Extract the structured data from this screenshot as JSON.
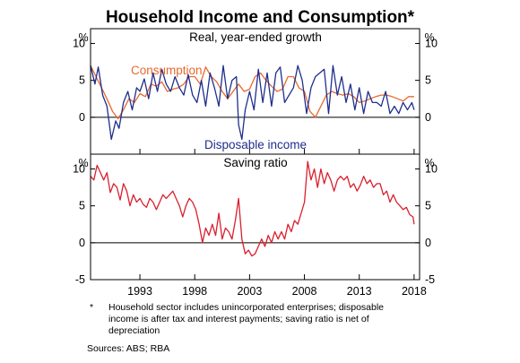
{
  "chart_data": {
    "type": "line",
    "title": "Household Income and Consumption*",
    "panels": [
      {
        "title": "Real, year-ended growth",
        "unit_left": "%",
        "unit_right": "%",
        "ylim": [
          -5,
          12
        ],
        "yticks": [
          0,
          5,
          10
        ],
        "ytick_labels": [
          "0",
          "5",
          "10"
        ],
        "series": [
          {
            "name": "Consumption",
            "label": "Consumption",
            "color": "#e8692e",
            "x": [
              1988.5,
              1989.0,
              1989.5,
              1990.0,
              1990.5,
              1991.0,
              1991.5,
              1992.0,
              1992.5,
              1993.0,
              1993.5,
              1994.0,
              1994.5,
              1995.0,
              1995.5,
              1996.0,
              1996.5,
              1997.0,
              1997.5,
              1998.0,
              1998.5,
              1999.0,
              1999.5,
              2000.0,
              2000.5,
              2001.0,
              2001.5,
              2002.0,
              2002.5,
              2003.0,
              2003.5,
              2004.0,
              2004.5,
              2005.0,
              2005.5,
              2006.0,
              2006.5,
              2007.0,
              2007.5,
              2008.0,
              2008.5,
              2009.0,
              2009.5,
              2010.0,
              2010.5,
              2011.0,
              2011.5,
              2012.0,
              2012.5,
              2013.0,
              2013.5,
              2014.0,
              2014.5,
              2015.0,
              2015.5,
              2016.0,
              2016.5,
              2017.0,
              2017.5,
              2018.0
            ],
            "y": [
              7.0,
              5.5,
              4.0,
              2.5,
              0.8,
              -0.2,
              1.0,
              2.5,
              2.0,
              3.2,
              2.8,
              4.5,
              4.2,
              4.8,
              3.5,
              3.8,
              4.0,
              4.5,
              5.5,
              5.5,
              4.5,
              6.8,
              5.5,
              4.8,
              3.5,
              2.5,
              3.5,
              4.5,
              3.5,
              3.8,
              5.5,
              6.0,
              5.0,
              4.2,
              3.5,
              3.8,
              5.5,
              5.5,
              4.0,
              3.5,
              0.8,
              0.0,
              1.5,
              3.0,
              3.5,
              3.2,
              3.0,
              3.2,
              2.8,
              2.0,
              2.2,
              2.5,
              2.8,
              3.0,
              3.0,
              2.8,
              2.5,
              2.2,
              2.8,
              2.8
            ]
          },
          {
            "name": "Disposable income",
            "label": "Disposable income",
            "color": "#1f2e8c",
            "x": [
              1988.5,
              1988.9,
              1989.2,
              1989.6,
              1990.0,
              1990.4,
              1990.8,
              1991.1,
              1991.5,
              1991.9,
              1992.3,
              1992.7,
              1993.0,
              1993.4,
              1993.8,
              1994.2,
              1994.6,
              1995.0,
              1995.4,
              1995.8,
              1996.2,
              1996.6,
              1997.0,
              1997.4,
              1997.8,
              1998.2,
              1998.6,
              1999.0,
              1999.4,
              1999.8,
              2000.2,
              2000.6,
              2001.0,
              2001.4,
              2001.8,
              2002.0,
              2002.3,
              2002.6,
              2003.0,
              2003.4,
              2003.8,
              2004.2,
              2004.6,
              2005.0,
              2005.4,
              2005.8,
              2006.2,
              2006.6,
              2007.0,
              2007.4,
              2007.8,
              2008.2,
              2008.6,
              2009.0,
              2009.4,
              2009.8,
              2010.2,
              2010.6,
              2011.0,
              2011.4,
              2011.8,
              2012.2,
              2012.6,
              2013.0,
              2013.4,
              2013.8,
              2014.2,
              2014.6,
              2015.0,
              2015.4,
              2015.8,
              2016.2,
              2016.6,
              2017.0,
              2017.4,
              2017.8,
              2018.0
            ],
            "y": [
              7.0,
              4.5,
              6.8,
              3.0,
              1.5,
              -3.0,
              -0.5,
              -1.5,
              2.0,
              3.5,
              1.0,
              4.0,
              3.5,
              5.2,
              2.5,
              6.0,
              3.5,
              6.5,
              4.5,
              3.5,
              5.5,
              4.0,
              3.0,
              5.8,
              3.0,
              2.0,
              5.0,
              1.5,
              6.0,
              4.0,
              1.5,
              7.0,
              2.5,
              5.0,
              5.5,
              -1.0,
              -3.0,
              1.0,
              3.5,
              1.0,
              6.5,
              2.0,
              6.0,
              1.5,
              6.0,
              6.8,
              2.0,
              3.0,
              4.0,
              7.0,
              5.0,
              0.5,
              4.0,
              5.5,
              6.0,
              6.5,
              0.5,
              7.0,
              3.0,
              5.5,
              2.0,
              4.5,
              1.0,
              4.0,
              0.5,
              3.5,
              2.0,
              2.0,
              1.5,
              3.5,
              0.5,
              1.5,
              0.5,
              2.0,
              1.0,
              2.0,
              1.0
            ]
          }
        ]
      },
      {
        "title": "Saving ratio",
        "unit_left": "%",
        "unit_right": "%",
        "ylim": [
          -5,
          12
        ],
        "yticks": [
          -5,
          0,
          5,
          10
        ],
        "ytick_labels": [
          "-5",
          "0",
          "5",
          "10"
        ],
        "series": [
          {
            "name": "Saving ratio",
            "color": "#d9202e",
            "x": [
              1988.5,
              1988.8,
              1989.1,
              1989.4,
              1989.7,
              1990.0,
              1990.3,
              1990.6,
              1990.9,
              1991.2,
              1991.5,
              1991.8,
              1992.1,
              1992.4,
              1992.7,
              1993.0,
              1993.3,
              1993.6,
              1993.9,
              1994.2,
              1994.5,
              1994.8,
              1995.1,
              1995.4,
              1995.7,
              1996.0,
              1996.3,
              1996.6,
              1996.9,
              1997.2,
              1997.5,
              1997.8,
              1998.1,
              1998.4,
              1998.7,
              1999.0,
              1999.3,
              1999.6,
              1999.9,
              2000.2,
              2000.5,
              2000.8,
              2001.1,
              2001.4,
              2001.7,
              2002.0,
              2002.3,
              2002.6,
              2002.9,
              2003.2,
              2003.5,
              2003.8,
              2004.1,
              2004.4,
              2004.7,
              2005.0,
              2005.3,
              2005.6,
              2005.9,
              2006.2,
              2006.5,
              2006.8,
              2007.1,
              2007.4,
              2007.7,
              2008.0,
              2008.3,
              2008.6,
              2008.9,
              2009.2,
              2009.5,
              2009.8,
              2010.1,
              2010.4,
              2010.7,
              2011.0,
              2011.3,
              2011.6,
              2011.9,
              2012.2,
              2012.5,
              2012.8,
              2013.1,
              2013.4,
              2013.7,
              2014.0,
              2014.3,
              2014.6,
              2014.9,
              2015.2,
              2015.5,
              2015.8,
              2016.1,
              2016.4,
              2016.7,
              2017.0,
              2017.3,
              2017.6,
              2017.9,
              2018.0
            ],
            "y": [
              9.0,
              8.5,
              10.5,
              9.5,
              8.5,
              9.5,
              6.8,
              8.0,
              7.5,
              5.8,
              8.0,
              7.0,
              5.0,
              6.5,
              5.5,
              6.0,
              5.2,
              4.8,
              6.0,
              5.5,
              4.5,
              5.5,
              6.5,
              6.0,
              6.5,
              7.0,
              6.0,
              5.0,
              3.5,
              5.0,
              6.0,
              5.5,
              4.5,
              2.5,
              0.0,
              2.0,
              1.0,
              2.5,
              1.0,
              4.0,
              0.5,
              2.0,
              1.5,
              0.5,
              3.0,
              6.0,
              0.5,
              -1.5,
              -1.0,
              -1.8,
              -1.5,
              -0.5,
              0.5,
              -0.5,
              1.0,
              0.0,
              1.5,
              0.5,
              1.5,
              0.5,
              2.5,
              1.5,
              3.0,
              2.5,
              4.0,
              5.5,
              11.0,
              8.5,
              10.0,
              7.5,
              10.0,
              8.0,
              9.5,
              8.5,
              7.0,
              8.5,
              9.0,
              8.5,
              9.0,
              7.5,
              8.0,
              7.0,
              7.8,
              9.0,
              8.0,
              8.5,
              7.5,
              8.0,
              8.0,
              6.5,
              7.0,
              5.5,
              6.5,
              5.5,
              5.0,
              4.5,
              4.8,
              3.8,
              3.5,
              2.5
            ]
          }
        ]
      }
    ],
    "xlim": [
      1988.5,
      2018.5
    ],
    "xticks": [
      1993,
      1998,
      2003,
      2008,
      2013,
      2018
    ],
    "xtick_labels": [
      "1993",
      "1998",
      "2003",
      "2008",
      "2013",
      "2018"
    ],
    "grid": false
  },
  "footnote": {
    "marker": "*",
    "lines": [
      "Household sector includes unincorporated enterprises; disposable",
      "income is after tax and interest payments; saving ratio is net of",
      "depreciation"
    ]
  },
  "sources": "Sources: ABS; RBA"
}
